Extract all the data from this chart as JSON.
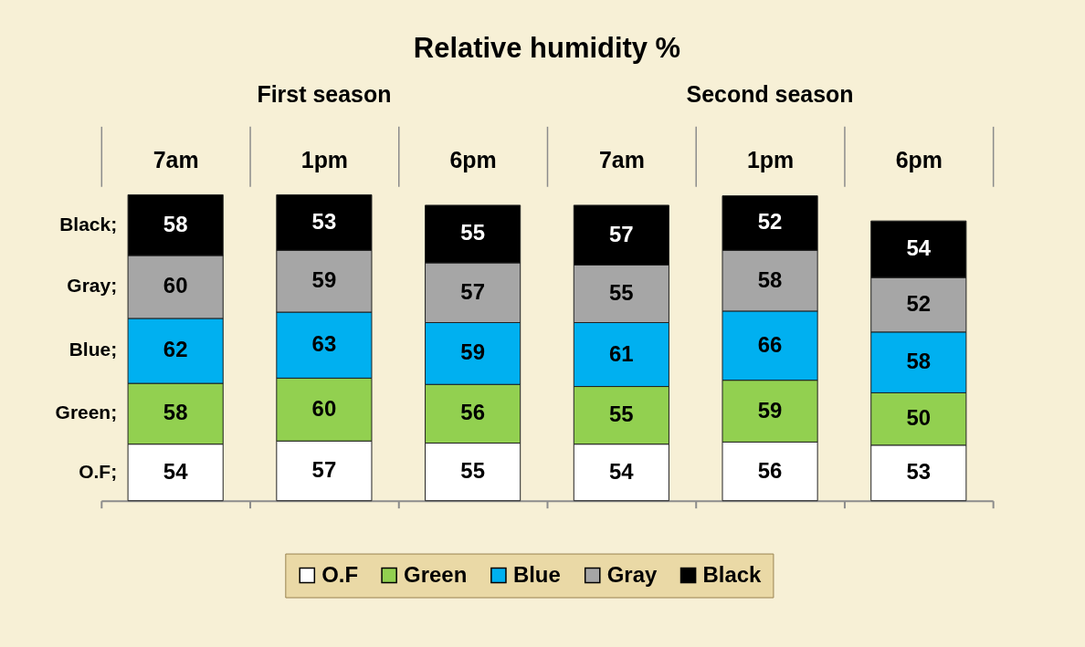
{
  "chart_data": {
    "type": "bar",
    "stacked": true,
    "title": "Relative humidity %",
    "categories": [
      "7am",
      "1pm",
      "6pm",
      "7am",
      "1pm",
      "6pm"
    ],
    "series": [
      {
        "name": "O.F",
        "color": "#ffffff",
        "values": [
          54,
          57,
          55,
          54,
          56,
          53
        ]
      },
      {
        "name": "Green",
        "color": "#92d050",
        "values": [
          58,
          60,
          56,
          55,
          59,
          50
        ]
      },
      {
        "name": "Blue",
        "color": "#00b0f0",
        "values": [
          62,
          63,
          59,
          61,
          66,
          58
        ]
      },
      {
        "name": "Gray",
        "color": "#a6a6a6",
        "values": [
          60,
          59,
          57,
          55,
          58,
          52
        ]
      },
      {
        "name": "Black",
        "color": "#000000",
        "values": [
          58,
          53,
          55,
          57,
          52,
          54
        ]
      }
    ],
    "data_labels": true,
    "legend": "bottom",
    "tick_labels": "x",
    "annotations": [
      "First season",
      "Second season",
      "O.F;",
      "Green;",
      "Blue;",
      "Gray;",
      "Black;"
    ]
  }
}
